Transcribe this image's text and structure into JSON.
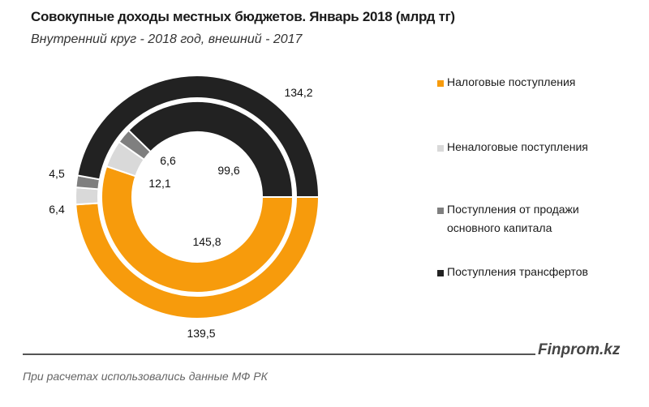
{
  "chart_data": {
    "type": "pie",
    "title": "Совокупные доходы местных бюджетов. Январь 2018  (млрд тг)",
    "subtitle": "Внутренний круг - 2018 год, внешний - 2017",
    "categories": [
      "Налоговые поступления",
      "Неналоговые поступления",
      "Поступления от продажи основного капитала",
      "Поступления трансфертов"
    ],
    "colors": [
      "#F79B0C",
      "#D9D9D9",
      "#7F7F7F",
      "#222222"
    ],
    "series": [
      {
        "ring": "inner",
        "values": [
          145.8,
          12.1,
          6.6,
          99.6
        ],
        "labels": [
          "145,8",
          "12,1",
          "6,6",
          "99,6"
        ]
      },
      {
        "ring": "outer",
        "values": [
          139.5,
          6.4,
          4.5,
          134.2
        ],
        "labels": [
          "139,5",
          "6,4",
          "4,5",
          "134,2"
        ]
      }
    ],
    "legend_position": "right",
    "legend": [
      {
        "lines": [
          "Налоговые поступления"
        ]
      },
      {
        "lines": [
          "Неналоговые поступления"
        ]
      },
      {
        "lines": [
          "Поступления от продажи",
          "основного капитала"
        ]
      },
      {
        "lines": [
          "Поступления трансфертов"
        ]
      }
    ]
  },
  "brand": "Finprom.kz",
  "footnote": "При расчетах использовались данные МФ РК"
}
